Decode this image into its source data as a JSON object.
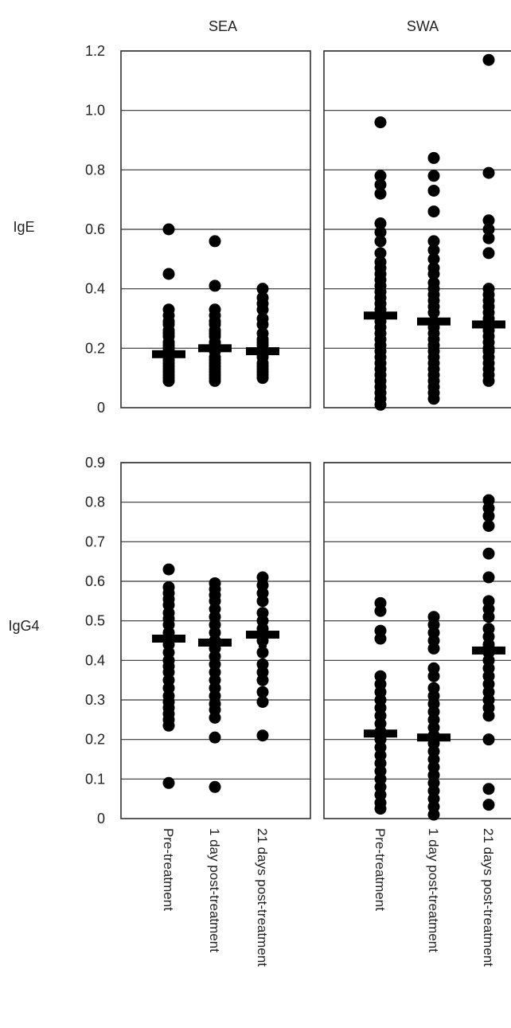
{
  "chart_data": [
    {
      "type": "scatter",
      "row_label": "IgE",
      "ylim": [
        0,
        1.2
      ],
      "yticks": [
        "0",
        "0.2",
        "0.4",
        "0.6",
        "0.8",
        "1.0",
        "1.2"
      ],
      "panels": [
        {
          "title": "SEA",
          "groups": [
            {
              "category": "Pre-treatment",
              "mean": 0.18,
              "values": [
                0.6,
                0.45,
                0.33,
                0.31,
                0.29,
                0.28,
                0.26,
                0.25,
                0.24,
                0.22,
                0.21,
                0.2,
                0.19,
                0.17,
                0.16,
                0.15,
                0.14,
                0.13,
                0.12,
                0.11,
                0.1,
                0.09
              ]
            },
            {
              "category": "1 day post-treatment",
              "mean": 0.2,
              "values": [
                0.56,
                0.41,
                0.33,
                0.31,
                0.29,
                0.28,
                0.26,
                0.25,
                0.24,
                0.22,
                0.21,
                0.19,
                0.17,
                0.16,
                0.15,
                0.14,
                0.13,
                0.12,
                0.11,
                0.1,
                0.09
              ]
            },
            {
              "category": "21 days post-treatment",
              "mean": 0.19,
              "values": [
                0.4,
                0.37,
                0.35,
                0.33,
                0.3,
                0.28,
                0.25,
                0.23,
                0.22,
                0.21,
                0.18,
                0.17,
                0.15,
                0.14,
                0.13,
                0.12,
                0.11,
                0.1
              ]
            }
          ]
        },
        {
          "title": "SWA",
          "groups": [
            {
              "category": "Pre-treatment",
              "mean": 0.31,
              "values": [
                0.96,
                0.78,
                0.75,
                0.72,
                0.62,
                0.59,
                0.56,
                0.52,
                0.49,
                0.47,
                0.45,
                0.43,
                0.41,
                0.39,
                0.37,
                0.35,
                0.33,
                0.29,
                0.27,
                0.25,
                0.23,
                0.21,
                0.19,
                0.17,
                0.15,
                0.13,
                0.11,
                0.09,
                0.07,
                0.05,
                0.03,
                0.01
              ]
            },
            {
              "category": "1 day post-treatment",
              "mean": 0.29,
              "values": [
                0.84,
                0.78,
                0.73,
                0.66,
                0.56,
                0.53,
                0.5,
                0.47,
                0.45,
                0.42,
                0.4,
                0.38,
                0.36,
                0.34,
                0.32,
                0.27,
                0.25,
                0.23,
                0.21,
                0.19,
                0.17,
                0.15,
                0.13,
                0.11,
                0.09,
                0.07,
                0.05,
                0.03
              ]
            },
            {
              "category": "21 days post-treatment",
              "mean": 0.28,
              "values": [
                1.17,
                0.79,
                0.63,
                0.6,
                0.57,
                0.52,
                0.4,
                0.38,
                0.36,
                0.34,
                0.32,
                0.3,
                0.26,
                0.24,
                0.22,
                0.2,
                0.19,
                0.17,
                0.15,
                0.13,
                0.11,
                0.09
              ]
            }
          ]
        }
      ]
    },
    {
      "type": "scatter",
      "row_label": "IgG4",
      "ylim": [
        0,
        0.9
      ],
      "yticks": [
        "0",
        "0.1",
        "0.2",
        "0.3",
        "0.4",
        "0.5",
        "0.6",
        "0.7",
        "0.8",
        "0.9"
      ],
      "panels": [
        {
          "title": "SEA",
          "groups": [
            {
              "category": "Pre-treatment",
              "mean": 0.455,
              "values": [
                0.63,
                0.585,
                0.57,
                0.555,
                0.54,
                0.52,
                0.505,
                0.49,
                0.47,
                0.44,
                0.42,
                0.4,
                0.385,
                0.37,
                0.35,
                0.33,
                0.31,
                0.295,
                0.28,
                0.265,
                0.25,
                0.235,
                0.09
              ]
            },
            {
              "category": "1 day post-treatment",
              "mean": 0.445,
              "values": [
                0.595,
                0.58,
                0.565,
                0.55,
                0.53,
                0.51,
                0.49,
                0.47,
                0.45,
                0.43,
                0.41,
                0.39,
                0.37,
                0.35,
                0.33,
                0.31,
                0.29,
                0.275,
                0.255,
                0.205,
                0.08
              ]
            },
            {
              "category": "21 days post-treatment",
              "mean": 0.465,
              "values": [
                0.61,
                0.59,
                0.57,
                0.55,
                0.52,
                0.5,
                0.48,
                0.45,
                0.42,
                0.39,
                0.37,
                0.35,
                0.32,
                0.295,
                0.21
              ]
            }
          ]
        },
        {
          "title": "SWA",
          "groups": [
            {
              "category": "Pre-treatment",
              "mean": 0.215,
              "values": [
                0.545,
                0.525,
                0.475,
                0.455,
                0.36,
                0.34,
                0.32,
                0.3,
                0.28,
                0.26,
                0.24,
                0.22,
                0.2,
                0.18,
                0.16,
                0.14,
                0.12,
                0.1,
                0.08,
                0.06,
                0.04,
                0.025
              ]
            },
            {
              "category": "1 day post-treatment",
              "mean": 0.205,
              "values": [
                0.51,
                0.49,
                0.47,
                0.45,
                0.43,
                0.38,
                0.36,
                0.33,
                0.31,
                0.29,
                0.27,
                0.25,
                0.23,
                0.21,
                0.19,
                0.17,
                0.15,
                0.13,
                0.11,
                0.09,
                0.07,
                0.05,
                0.03,
                0.01
              ]
            },
            {
              "category": "21 days post-treatment",
              "mean": 0.425,
              "values": [
                0.805,
                0.785,
                0.765,
                0.74,
                0.67,
                0.61,
                0.55,
                0.53,
                0.51,
                0.48,
                0.46,
                0.44,
                0.42,
                0.4,
                0.38,
                0.36,
                0.34,
                0.32,
                0.3,
                0.28,
                0.26,
                0.2,
                0.075,
                0.035
              ]
            }
          ]
        }
      ]
    }
  ],
  "colors": {
    "marker": "#000000",
    "gridline": "#333333",
    "axis": "#333333",
    "text": "#222222"
  }
}
